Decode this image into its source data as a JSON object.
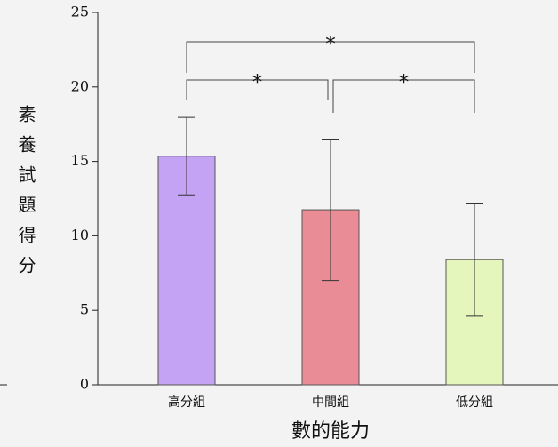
{
  "chart_data": {
    "type": "bar",
    "x_label": "數的能力",
    "y_label": "素養試題得分",
    "categories": [
      "高分組",
      "中間組",
      "低分組"
    ],
    "values": [
      15.35,
      11.75,
      8.4
    ],
    "errors": [
      2.6,
      4.75,
      3.8
    ],
    "colors": [
      "#c4a2f4",
      "#e98c96",
      "#e4f6bb"
    ],
    "ylim": [
      0,
      25
    ],
    "yticks": [
      0,
      5,
      10,
      15,
      20,
      25
    ],
    "annotations": [
      "*",
      "*",
      "*"
    ]
  }
}
